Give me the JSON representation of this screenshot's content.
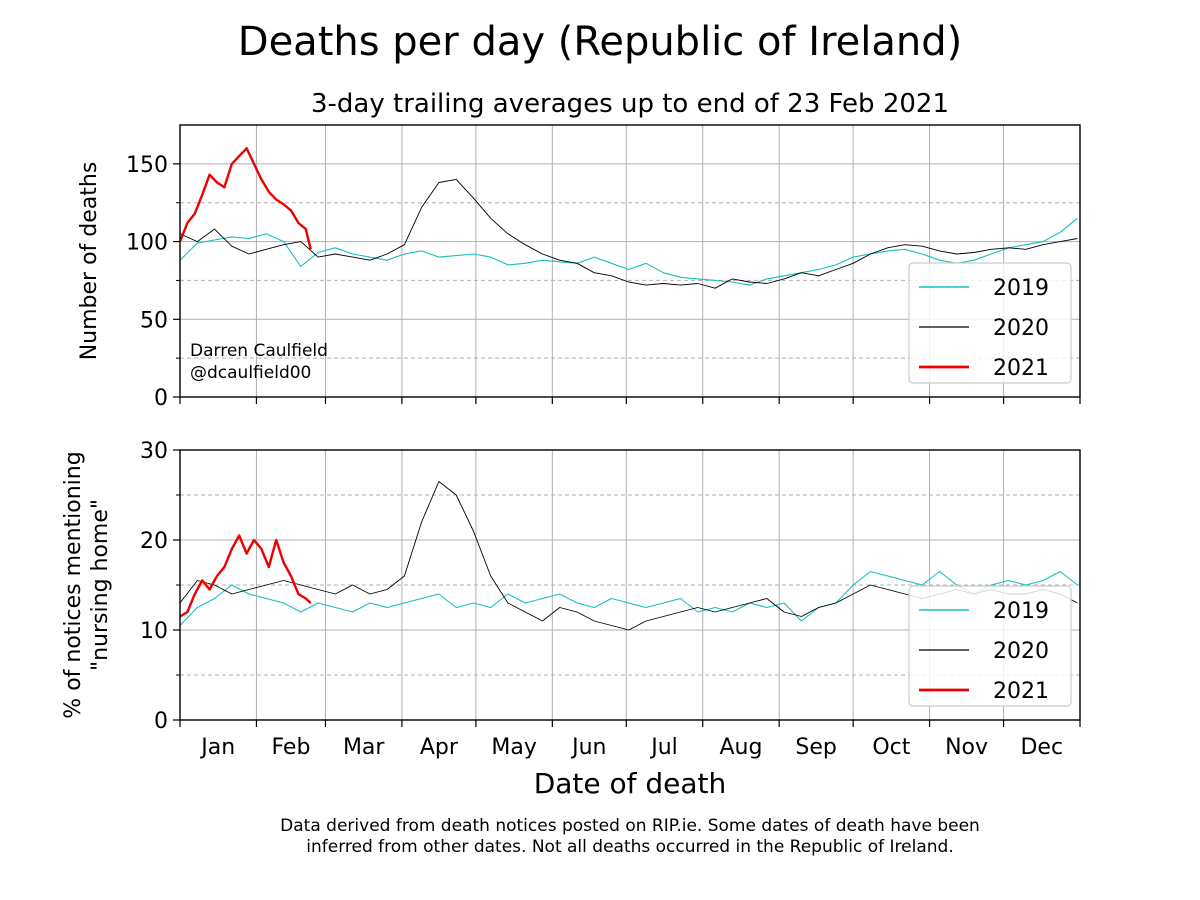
{
  "title": "Deaths per day (Republic of Ireland)",
  "subtitle": "3-day trailing averages up to end of 23 Feb 2021",
  "xlabel": "Date of death",
  "credit": [
    "Darren Caulfield",
    "@dcaulfield00"
  ],
  "footnote": [
    "Data derived from death notices posted on RIP.ie. Some dates of death have been",
    "inferred from other dates. Not all deaths occurred in the Republic of Ireland."
  ],
  "colors": {
    "2019": "#17bfbf",
    "2020": "#000000",
    "2021": "#ee0000",
    "grid": "#b0b0b0"
  },
  "chart_data": [
    {
      "type": "line",
      "ylabel": "Number of deaths",
      "xlim": [
        1,
        366
      ],
      "ylim": [
        0,
        175
      ],
      "yticks": [
        0,
        50,
        100,
        150
      ],
      "month_ticks": [
        {
          "label": "Jan",
          "day": 1
        },
        {
          "label": "Feb",
          "day": 32
        },
        {
          "label": "Mar",
          "day": 60
        },
        {
          "label": "Apr",
          "day": 91
        },
        {
          "label": "May",
          "day": 121
        },
        {
          "label": "Jun",
          "day": 152
        },
        {
          "label": "Jul",
          "day": 182
        },
        {
          "label": "Aug",
          "day": 213
        },
        {
          "label": "Sep",
          "day": 244
        },
        {
          "label": "Oct",
          "day": 274
        },
        {
          "label": "Nov",
          "day": 305
        },
        {
          "label": "Dec",
          "day": 335
        }
      ],
      "grid": true,
      "legend": "lower-right",
      "x_unit": "day of year",
      "series": [
        {
          "name": "2019",
          "x": [
            1,
            8,
            15,
            22,
            29,
            36,
            43,
            50,
            57,
            64,
            71,
            78,
            85,
            92,
            99,
            106,
            113,
            120,
            127,
            134,
            141,
            148,
            155,
            162,
            169,
            176,
            183,
            190,
            197,
            204,
            211,
            218,
            225,
            232,
            239,
            246,
            253,
            260,
            267,
            274,
            281,
            288,
            295,
            302,
            309,
            316,
            323,
            330,
            337,
            344,
            351,
            358,
            365
          ],
          "y": [
            88,
            99,
            101,
            103,
            102,
            105,
            100,
            84,
            93,
            96,
            92,
            90,
            88,
            92,
            94,
            90,
            91,
            92,
            90,
            85,
            86,
            88,
            87,
            86,
            90,
            86,
            82,
            86,
            80,
            77,
            76,
            75,
            74,
            72,
            76,
            78,
            80,
            82,
            85,
            90,
            92,
            94,
            95,
            92,
            88,
            86,
            88,
            92,
            96,
            98,
            100,
            106,
            115
          ],
          "stroke_width": 1.1
        },
        {
          "name": "2020",
          "x": [
            1,
            8,
            15,
            22,
            29,
            36,
            43,
            50,
            57,
            64,
            71,
            78,
            85,
            92,
            99,
            106,
            113,
            120,
            127,
            134,
            141,
            148,
            155,
            162,
            169,
            176,
            183,
            190,
            197,
            204,
            211,
            218,
            225,
            232,
            239,
            246,
            253,
            260,
            267,
            274,
            281,
            288,
            295,
            302,
            309,
            316,
            323,
            330,
            337,
            344,
            351,
            358,
            365
          ],
          "y": [
            105,
            100,
            108,
            97,
            92,
            95,
            98,
            100,
            90,
            92,
            90,
            88,
            92,
            98,
            122,
            138,
            140,
            128,
            115,
            105,
            98,
            92,
            88,
            86,
            80,
            78,
            74,
            72,
            73,
            72,
            73,
            70,
            76,
            74,
            73,
            76,
            80,
            78,
            82,
            86,
            92,
            96,
            98,
            97,
            94,
            92,
            93,
            95,
            96,
            95,
            98,
            100,
            102
          ],
          "stroke_width": 0.9
        },
        {
          "name": "2021",
          "x": [
            1,
            4,
            7,
            10,
            13,
            16,
            19,
            22,
            25,
            28,
            31,
            34,
            37,
            40,
            43,
            46,
            49,
            52,
            54
          ],
          "y": [
            100,
            112,
            118,
            130,
            143,
            138,
            135,
            150,
            155,
            160,
            150,
            140,
            132,
            127,
            124,
            120,
            112,
            108,
            95
          ],
          "stroke_width": 2.4
        }
      ]
    },
    {
      "type": "line",
      "ylabel": "% of notices mentioning \"nursing home\"",
      "xlim": [
        1,
        366
      ],
      "ylim": [
        0,
        30
      ],
      "yticks": [
        0,
        10,
        20,
        30
      ],
      "month_ticks": [
        {
          "label": "Jan",
          "day": 1
        },
        {
          "label": "Feb",
          "day": 32
        },
        {
          "label": "Mar",
          "day": 60
        },
        {
          "label": "Apr",
          "day": 91
        },
        {
          "label": "May",
          "day": 121
        },
        {
          "label": "Jun",
          "day": 152
        },
        {
          "label": "Jul",
          "day": 182
        },
        {
          "label": "Aug",
          "day": 213
        },
        {
          "label": "Sep",
          "day": 244
        },
        {
          "label": "Oct",
          "day": 274
        },
        {
          "label": "Nov",
          "day": 305
        },
        {
          "label": "Dec",
          "day": 335
        }
      ],
      "grid": true,
      "legend": "lower-right",
      "x_unit": "day of year",
      "series": [
        {
          "name": "2019",
          "x": [
            1,
            8,
            15,
            22,
            29,
            36,
            43,
            50,
            57,
            64,
            71,
            78,
            85,
            92,
            99,
            106,
            113,
            120,
            127,
            134,
            141,
            148,
            155,
            162,
            169,
            176,
            183,
            190,
            197,
            204,
            211,
            218,
            225,
            232,
            239,
            246,
            253,
            260,
            267,
            274,
            281,
            288,
            295,
            302,
            309,
            316,
            323,
            330,
            337,
            344,
            351,
            358,
            365
          ],
          "y": [
            10.5,
            12.5,
            13.5,
            15,
            14,
            13.5,
            13,
            12,
            13,
            12.5,
            12,
            13,
            12.5,
            13,
            13.5,
            14,
            12.5,
            13,
            12.5,
            14,
            13,
            13.5,
            14,
            13,
            12.5,
            13.5,
            13,
            12.5,
            13,
            13.5,
            12,
            12.5,
            12,
            13,
            12.5,
            13,
            11,
            12.5,
            13,
            15,
            16.5,
            16,
            15.5,
            15,
            16.5,
            15,
            14,
            15,
            15.5,
            15,
            15.5,
            16.5,
            15
          ],
          "stroke_width": 1.1
        },
        {
          "name": "2020",
          "x": [
            1,
            8,
            15,
            22,
            29,
            36,
            43,
            50,
            57,
            64,
            71,
            78,
            85,
            92,
            99,
            106,
            113,
            120,
            127,
            134,
            141,
            148,
            155,
            162,
            169,
            176,
            183,
            190,
            197,
            204,
            211,
            218,
            225,
            232,
            239,
            246,
            253,
            260,
            267,
            274,
            281,
            288,
            295,
            302,
            309,
            316,
            323,
            330,
            337,
            344,
            351,
            358,
            365
          ],
          "y": [
            13,
            15.5,
            15,
            14,
            14.5,
            15,
            15.5,
            15,
            14.5,
            14,
            15,
            14,
            14.5,
            16,
            22,
            26.5,
            25,
            21,
            16,
            13,
            12,
            11,
            12.5,
            12,
            11,
            10.5,
            10,
            11,
            11.5,
            12,
            12.5,
            12,
            12.5,
            13,
            13.5,
            12,
            11.5,
            12.5,
            13,
            14,
            15,
            14.5,
            14,
            13.5,
            14,
            14.5,
            14,
            14.5,
            14,
            14,
            14.5,
            14,
            13
          ],
          "stroke_width": 0.9
        },
        {
          "name": "2021",
          "x": [
            1,
            4,
            7,
            10,
            13,
            16,
            19,
            22,
            25,
            28,
            31,
            34,
            37,
            40,
            43,
            46,
            49,
            52,
            54
          ],
          "y": [
            11.5,
            12,
            14,
            15.5,
            14.5,
            16,
            17,
            19,
            20.5,
            18.5,
            20,
            19,
            17,
            20,
            17.5,
            16,
            14,
            13.5,
            13
          ],
          "stroke_width": 2.4
        }
      ]
    }
  ]
}
